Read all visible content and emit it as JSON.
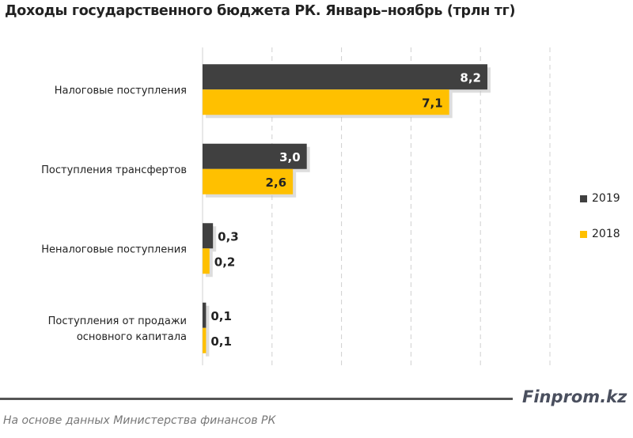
{
  "chart_data": {
    "type": "bar",
    "orientation": "horizontal",
    "title": "Доходы государственного бюджета РК. Январь–ноябрь (трлн тг)",
    "categories": [
      "Налоговые поступления",
      "Поступления трансфертов",
      "Неналоговые поступления",
      "Поступления от продажи основного капитала"
    ],
    "series": [
      {
        "name": "2019",
        "color": "#404040",
        "values": [
          8.2,
          3.0,
          0.3,
          0.1
        ],
        "labels": [
          "8,2",
          "3,0",
          "0,3",
          "0,1"
        ]
      },
      {
        "name": "2018",
        "color": "#FFC000",
        "values": [
          7.1,
          2.6,
          0.2,
          0.1
        ],
        "labels": [
          "7,1",
          "2,6",
          "0,2",
          "0,1"
        ]
      }
    ],
    "xlim": [
      0,
      10
    ],
    "grid": "vertical dashed",
    "legend": "right"
  },
  "brand": "Finprom.kz",
  "footnote": "На основе данных Министерства финансов РК"
}
